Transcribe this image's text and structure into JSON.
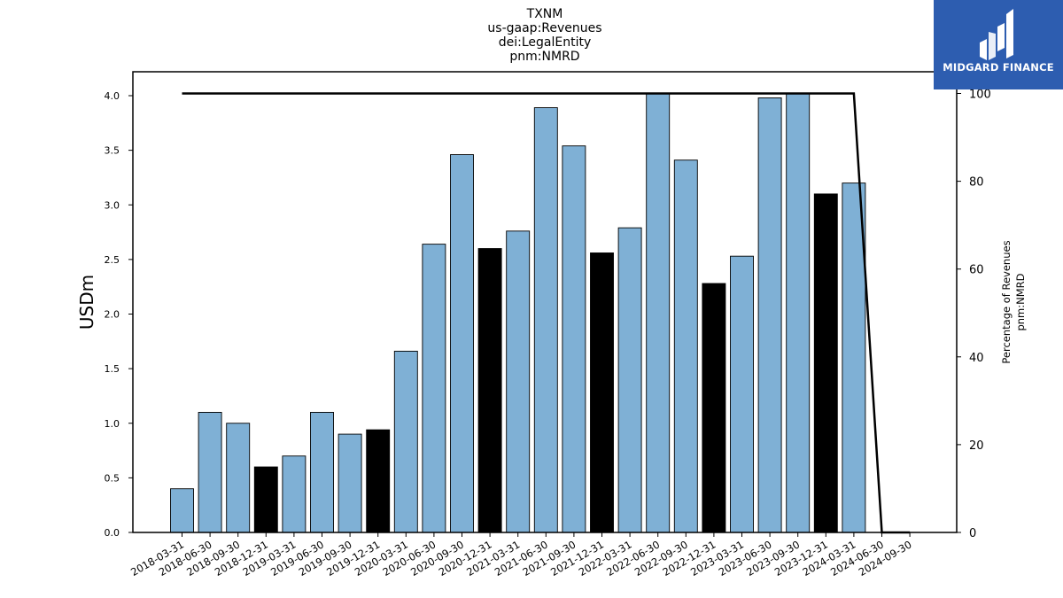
{
  "logo": {
    "text": "MIDGARD FINANCE",
    "icon": "midgard-m-logo-icon",
    "background": "#2d5db0"
  },
  "chart_data": {
    "type": "bar",
    "title_lines": [
      "TXNM",
      "us-gaap:Revenues",
      "dei:LegalEntity",
      "pnm:NMRD"
    ],
    "ylabel": "USDm",
    "y2label_lines": [
      "Percentage of Revenues",
      "pnm:NMRD"
    ],
    "ylim": [
      0,
      4.2
    ],
    "y2lim": [
      0,
      105
    ],
    "yticks": [
      "0.0",
      "0.5",
      "1.0",
      "1.5",
      "2.0",
      "2.5",
      "3.0",
      "3.5",
      "4.0"
    ],
    "y2ticks": [
      "0",
      "20",
      "40",
      "60",
      "80",
      "100"
    ],
    "grid": false,
    "categories": [
      "2018-03-31",
      "2018-06-30",
      "2018-09-30",
      "2018-12-31",
      "2019-03-31",
      "2019-06-30",
      "2019-09-30",
      "2019-12-31",
      "2020-03-31",
      "2020-06-30",
      "2020-09-30",
      "2020-12-31",
      "2021-03-31",
      "2021-06-30",
      "2021-09-30",
      "2021-12-31",
      "2022-03-31",
      "2022-06-30",
      "2022-09-30",
      "2022-12-31",
      "2023-03-31",
      "2023-06-30",
      "2023-09-30",
      "2023-12-31",
      "2024-03-31",
      "2024-06-30",
      "2024-09-30"
    ],
    "values": [
      0.4,
      1.1,
      1.0,
      0.6,
      0.7,
      1.1,
      0.9,
      0.94,
      1.66,
      2.64,
      3.46,
      2.6,
      2.76,
      3.89,
      3.54,
      2.56,
      2.79,
      4.02,
      3.41,
      2.28,
      2.53,
      3.98,
      4.02,
      3.1,
      3.2,
      null,
      null
    ],
    "bar_colors": [
      "#7fb0d5",
      "#7fb0d5",
      "#7fb0d5",
      "#000000",
      "#7fb0d5",
      "#7fb0d5",
      "#7fb0d5",
      "#000000",
      "#7fb0d5",
      "#7fb0d5",
      "#7fb0d5",
      "#000000",
      "#7fb0d5",
      "#7fb0d5",
      "#7fb0d5",
      "#000000",
      "#7fb0d5",
      "#7fb0d5",
      "#7fb0d5",
      "#000000",
      "#7fb0d5",
      "#7fb0d5",
      "#7fb0d5",
      "#000000",
      "#7fb0d5",
      "#7fb0d5",
      "#7fb0d5"
    ],
    "percentage_line": [
      100,
      100,
      100,
      100,
      100,
      100,
      100,
      100,
      100,
      100,
      100,
      100,
      100,
      100,
      100,
      100,
      100,
      100,
      100,
      100,
      100,
      100,
      100,
      100,
      100,
      0,
      0
    ],
    "line_color": "#000000"
  }
}
